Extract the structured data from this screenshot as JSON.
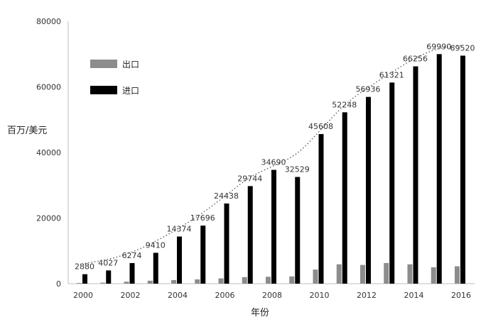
{
  "chart_data": {
    "type": "bar",
    "ylabel": "百万/美元",
    "xlabel": "年份",
    "ylim": [
      0,
      80000
    ],
    "yticks": [
      0,
      20000,
      40000,
      60000,
      80000
    ],
    "xtick_labels": [
      "2000",
      "2002",
      "2004",
      "2006",
      "2008",
      "2010",
      "2012",
      "2014",
      "2016"
    ],
    "categories": [
      "2000",
      "2001",
      "2002",
      "2003",
      "2004",
      "2005",
      "2006",
      "2007",
      "2008",
      "2009",
      "2010",
      "2011",
      "2012",
      "2013",
      "2014",
      "2015",
      "2016"
    ],
    "series": [
      {
        "name": "出口",
        "color": "#8c8c8c",
        "values": [
          200,
          300,
          600,
          900,
          1100,
          1300,
          1600,
          2000,
          2100,
          2200,
          4300,
          5900,
          5700,
          6300,
          5900,
          5000,
          5300
        ]
      },
      {
        "name": "进口",
        "color": "#000000",
        "values": [
          2880,
          4027,
          6274,
          9410,
          14374,
          17696,
          24438,
          29744,
          34690,
          32529,
          45608,
          52248,
          56936,
          61321,
          66256,
          69990,
          69520
        ]
      }
    ],
    "data_labels": [
      "2880",
      "4027",
      "6274",
      "9410",
      "14374",
      "17696",
      "24438",
      "29744",
      "34690",
      "32529",
      "45608",
      "52248",
      "56936",
      "61321",
      "66256",
      "69990",
      "69520"
    ],
    "trendline": "dotted",
    "legend": "upper-left",
    "grid": false
  }
}
